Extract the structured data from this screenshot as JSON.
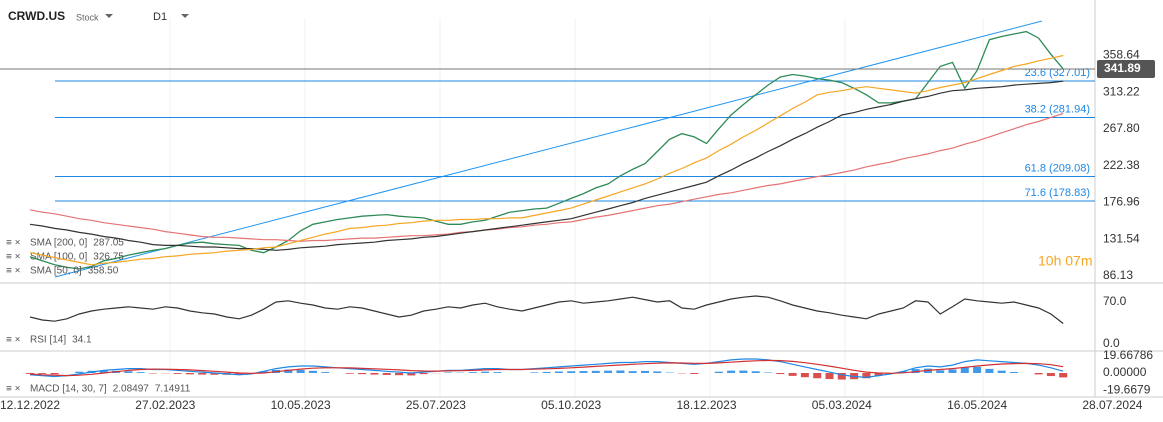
{
  "header": {
    "symbol": "CRWD.US",
    "kind": "Stock",
    "timeframe": "D1",
    "timer": "10h 07m"
  },
  "chart_data": [
    {
      "type": "line",
      "categories": [
        "12.12.2022",
        null,
        null,
        null,
        null,
        null,
        null,
        null,
        null,
        null,
        null,
        "27.02.2023",
        null,
        null,
        null,
        null,
        null,
        null,
        null,
        null,
        null,
        null,
        "10.05.2023",
        null,
        null,
        null,
        null,
        null,
        null,
        null,
        null,
        null,
        null,
        "25.07.2023",
        null,
        null,
        null,
        null,
        null,
        null,
        null,
        null,
        null,
        null,
        "05.10.2023",
        null,
        null,
        null,
        null,
        null,
        null,
        null,
        null,
        null,
        null,
        "18.12.2023",
        null,
        null,
        null,
        null,
        null,
        null,
        null,
        null,
        null,
        null,
        "05.03.2024",
        null,
        null,
        null,
        null,
        null,
        null,
        null,
        null,
        null,
        null,
        "16.05.2024",
        null,
        null,
        null,
        null,
        null,
        null,
        null,
        null,
        null,
        null,
        "28.07.2024"
      ],
      "ylim": [
        78.8,
        404.8
      ],
      "yticks": [
        86.13,
        131.54,
        176.96,
        222.38,
        {
          "value": 267.8,
          "label": "267.80"
        },
        313.22,
        358.64
      ],
      "levels": [
        {
          "label": "23.6 (327.01)",
          "value": 327.01
        },
        {
          "label": "38.2 (281.94)",
          "value": 281.94
        },
        {
          "label": "61.8 (209.08)",
          "value": 209.08
        },
        {
          "label": "71.6 (178.83)",
          "value": 178.83
        }
      ],
      "level_color": "#1e88e5",
      "series": [
        {
          "color": "#2e8b57",
          "values": [
            110,
            105,
            100,
            97,
            95,
            98,
            105,
            108,
            112,
            115,
            118,
            120,
            124,
            127,
            128,
            126,
            125,
            124,
            118,
            115,
            122,
            130,
            142,
            150,
            153,
            156,
            158,
            160,
            161,
            162,
            160,
            159,
            158,
            154,
            150,
            150,
            153,
            155,
            160,
            165,
            167,
            169,
            170,
            176,
            182,
            188,
            195,
            200,
            210,
            218,
            225,
            240,
            255,
            262,
            258,
            250,
            268,
            285,
            298,
            310,
            322,
            332,
            335,
            333,
            330,
            328,
            325,
            318,
            310,
            300,
            300,
            302,
            305,
            325,
            345,
            350,
            318,
            340,
            378,
            382,
            385,
            388,
            380,
            360,
            341.89,
            null,
            null,
            null,
            null
          ]
        },
        {
          "name": "SMA [200, 0]",
          "color": "#e57373",
          "values": [
            168,
            165,
            163,
            160,
            157,
            155,
            152,
            150,
            148,
            146,
            144,
            141,
            139,
            137,
            135,
            134,
            134,
            133,
            132,
            131,
            131,
            130,
            129,
            130,
            130,
            131,
            132,
            133,
            133,
            134,
            135,
            136,
            136,
            137,
            138,
            140,
            141,
            143,
            144,
            146,
            147,
            149,
            150,
            152,
            153,
            156,
            159,
            161,
            164,
            167,
            170,
            173,
            175,
            178,
            181,
            184,
            187,
            189,
            192,
            195,
            198,
            200,
            203,
            206,
            209,
            211,
            214,
            217,
            221,
            224,
            227,
            231,
            234,
            237,
            241,
            244,
            249,
            253,
            258,
            263,
            268,
            273,
            277,
            282,
            287.05,
            null,
            null,
            null,
            null
          ]
        },
        {
          "name": "SMA [100, 0]",
          "color": "#333333",
          "values": [
            150,
            148,
            145,
            143,
            140,
            138,
            135,
            133,
            130,
            128,
            125,
            124,
            124,
            123,
            122,
            122,
            121,
            120,
            120,
            119,
            118,
            119,
            121,
            122,
            123,
            125,
            126,
            127,
            128,
            130,
            131,
            132,
            134,
            135,
            137,
            139,
            141,
            143,
            145,
            147,
            149,
            151,
            153,
            155,
            157,
            161,
            165,
            169,
            173,
            177,
            182,
            186,
            190,
            194,
            198,
            202,
            210,
            217,
            225,
            232,
            240,
            247,
            255,
            262,
            270,
            277,
            285,
            288,
            292,
            295,
            298,
            302,
            305,
            308,
            312,
            315,
            316,
            318,
            319,
            320,
            322,
            323,
            324,
            325,
            326.75,
            null,
            null,
            null,
            null
          ]
        },
        {
          "name": "SMA [50, 0]",
          "color": "#f5a623",
          "values": [
            115,
            112,
            109,
            106,
            103,
            100,
            102,
            103,
            105,
            107,
            108,
            110,
            111,
            113,
            114,
            115,
            117,
            118,
            119,
            121,
            122,
            126,
            130,
            134,
            138,
            141,
            145,
            146,
            148,
            149,
            151,
            152,
            154,
            155,
            155,
            156,
            156,
            157,
            157,
            158,
            158,
            161,
            164,
            167,
            170,
            175,
            180,
            185,
            190,
            195,
            200,
            206,
            213,
            219,
            226,
            232,
            241,
            249,
            258,
            266,
            275,
            284,
            293,
            301,
            310,
            313,
            315,
            318,
            320,
            318,
            316,
            314,
            312,
            315,
            319,
            322,
            325,
            330,
            335,
            340,
            345,
            348,
            352,
            355,
            358.5,
            null,
            null,
            null,
            null
          ],
          "value_labels": [
            null,
            null,
            null,
            null,
            null,
            null,
            null,
            null,
            null,
            null,
            null,
            null,
            null,
            null,
            null,
            null,
            null,
            null,
            null,
            null,
            null,
            null,
            null,
            null,
            null,
            null,
            null,
            null,
            null,
            null,
            null,
            null,
            null,
            null,
            null,
            null,
            null,
            null,
            null,
            null,
            null,
            null,
            null,
            null,
            null,
            null,
            null,
            null,
            null,
            null,
            null,
            null,
            null,
            null,
            null,
            null,
            null,
            null,
            null,
            null,
            null,
            null,
            null,
            null,
            null,
            null,
            null,
            null,
            null,
            null,
            null,
            null,
            null,
            null,
            null,
            null,
            null,
            null,
            null,
            null,
            null,
            null,
            null,
            null,
            "358.50",
            null,
            null,
            null,
            null
          ]
        }
      ]
    },
    {
      "type": "line",
      "ylim": [
        -10,
        95
      ],
      "yticks": [
        {
          "value": 0,
          "label": "0.0"
        },
        {
          "value": 70,
          "label": "70.0"
        }
      ],
      "series": [
        {
          "name": "RSI [14]",
          "color": "#333333",
          "values": [
            45,
            40,
            38,
            42,
            50,
            55,
            58,
            60,
            62,
            60,
            58,
            62,
            60,
            55,
            52,
            50,
            45,
            42,
            48,
            58,
            70,
            72,
            68,
            65,
            60,
            58,
            62,
            60,
            55,
            50,
            45,
            48,
            55,
            58,
            62,
            60,
            65,
            68,
            62,
            58,
            55,
            60,
            65,
            70,
            72,
            68,
            70,
            72,
            75,
            78,
            74,
            70,
            72,
            60,
            58,
            65,
            70,
            75,
            78,
            80,
            78,
            72,
            65,
            60,
            55,
            52,
            48,
            45,
            42,
            50,
            55,
            60,
            72,
            70,
            50,
            62,
            75,
            72,
            70,
            68,
            70,
            65,
            60,
            50,
            34.1,
            null,
            null,
            null,
            null
          ]
        }
      ]
    },
    {
      "type": "line",
      "ylim": [
        -24,
        24
      ],
      "yticks": [
        -19.6679,
        {
          "value": 0,
          "label": "0.00000"
        },
        19.66786
      ],
      "histogram": true,
      "histogram_colors": [
        "#1e88e5",
        "#d32f2f"
      ],
      "series": [
        {
          "name": "MACD [14, 30, 7]",
          "color": "#1e88e5",
          "values": [
            -2,
            -3,
            -4,
            -3,
            -1,
            1,
            3,
            4,
            5,
            5,
            4,
            4,
            3,
            2,
            1,
            0,
            -1,
            -2,
            -1,
            2,
            5,
            7,
            8,
            8,
            7,
            6,
            5,
            4,
            3,
            2,
            1,
            0,
            1,
            2,
            3,
            3,
            4,
            5,
            5,
            4,
            4,
            5,
            6,
            7,
            8,
            9,
            10,
            11,
            12,
            12,
            13,
            13,
            12,
            11,
            10,
            11,
            13,
            15,
            16,
            16,
            15,
            13,
            10,
            7,
            4,
            1,
            -2,
            -4,
            -5,
            -3,
            -1,
            2,
            6,
            8,
            7,
            9,
            13,
            15,
            14,
            13,
            12,
            11,
            9,
            6,
            2.08497,
            null,
            null,
            null,
            null
          ]
        },
        {
          "color": "#d32f2f",
          "values": [
            -1,
            -2,
            -2.5,
            -3,
            -2.5,
            -1.5,
            0,
            1.5,
            3,
            4,
            4.5,
            4.3,
            4,
            3.5,
            2.8,
            2,
            1,
            0,
            -0.5,
            0,
            1.5,
            3,
            4.5,
            5.5,
            6,
            6,
            5.8,
            5.3,
            4.8,
            4.2,
            3.5,
            2.8,
            2.3,
            2.2,
            2.4,
            2.6,
            3,
            3.5,
            4,
            4,
            4,
            4.3,
            4.8,
            5.3,
            6,
            6.8,
            7.5,
            8.3,
            9.1,
            9.9,
            10.6,
            11.2,
            11.5,
            11.4,
            11.1,
            11,
            11.5,
            12.3,
            13.2,
            14,
            14.4,
            14.2,
            13.3,
            11.8,
            10,
            7.9,
            5.5,
            3.1,
            1,
            0,
            -0.3,
            0.2,
            1.5,
            3,
            4,
            5,
            6.5,
            8,
            9.3,
            10.3,
            10.8,
            11,
            10.6,
            9.5,
            7.14911,
            null,
            null,
            null,
            null
          ]
        }
      ]
    }
  ]
}
